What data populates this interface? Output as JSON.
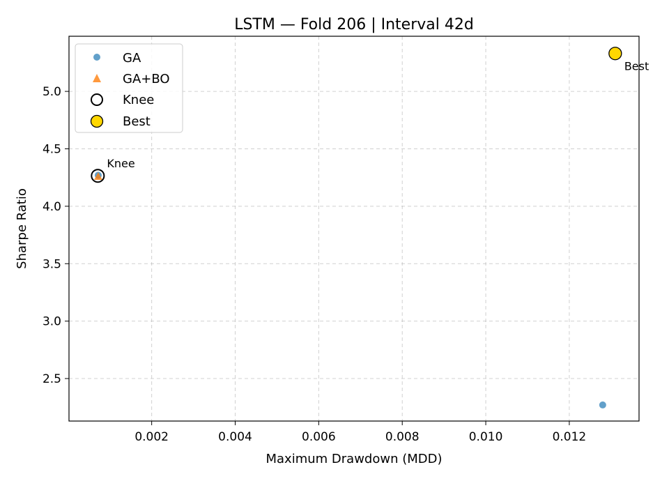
{
  "chart_data": {
    "type": "scatter",
    "title": "LSTM — Fold 206 | Interval 42d",
    "xlabel": "Maximum Drawdown (MDD)",
    "ylabel": "Sharpe Ratio",
    "xlim": [
      2e-05,
      0.01367
    ],
    "ylim": [
      2.13,
      5.48
    ],
    "xticks": [
      0.002,
      0.004,
      0.006,
      0.008,
      0.01,
      0.012
    ],
    "xtick_labels": [
      "0.002",
      "0.004",
      "0.006",
      "0.008",
      "0.010",
      "0.012"
    ],
    "yticks": [
      2.5,
      3.0,
      3.5,
      4.0,
      4.5,
      5.0
    ],
    "ytick_labels": [
      "2.5",
      "3.0",
      "3.5",
      "4.0",
      "4.5",
      "5.0"
    ],
    "grid": true,
    "legend_position": "top-left",
    "series": [
      {
        "name": "GA",
        "marker": "circle",
        "color": "#1f77b4",
        "points": [
          {
            "x": 0.00072,
            "y": 4.27
          },
          {
            "x": 0.0128,
            "y": 2.27
          }
        ]
      },
      {
        "name": "GA+BO",
        "marker": "triangle",
        "color": "#ff7f0e",
        "points": [
          {
            "x": 0.00072,
            "y": 4.26
          }
        ]
      },
      {
        "name": "Knee",
        "marker": "ring",
        "color": "#000000",
        "points": [
          {
            "x": 0.00071,
            "y": 4.265
          }
        ]
      },
      {
        "name": "Best",
        "marker": "filled-circle",
        "color": "#ffd700",
        "points": [
          {
            "x": 0.0131,
            "y": 5.33
          }
        ]
      }
    ],
    "annotations": [
      {
        "text": "Knee",
        "x": 0.00071,
        "y": 4.265,
        "placement": "above-right"
      },
      {
        "text": "Best",
        "x": 0.0131,
        "y": 5.33,
        "placement": "below-right"
      }
    ]
  }
}
